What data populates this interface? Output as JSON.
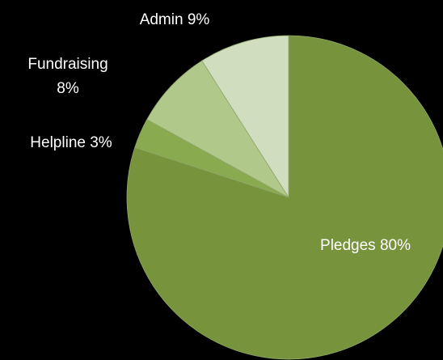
{
  "chart_data": {
    "type": "pie",
    "title": "",
    "start_angle_deg": 0,
    "direction": "clockwise",
    "background": "#000000",
    "slices": [
      {
        "name": "Pledges",
        "value": 80,
        "label_lines": [
          "Pledges 80%"
        ],
        "color": "#77933c"
      },
      {
        "name": "Helpline",
        "value": 3,
        "label_lines": [
          "Helpline 3%"
        ],
        "color": "#8aaa4f"
      },
      {
        "name": "Fundraising",
        "value": 8,
        "label_lines": [
          "Fundraising",
          "8%"
        ],
        "color": "#b0c98a"
      },
      {
        "name": "Admin",
        "value": 9,
        "label_lines": [
          "Admin 9%"
        ],
        "color": "#d0ddbf"
      }
    ]
  }
}
